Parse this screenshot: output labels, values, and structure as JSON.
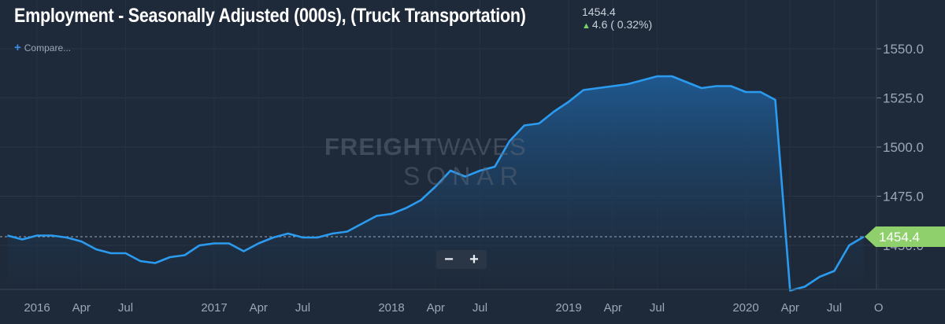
{
  "header": {
    "title": "Employment - Seasonally Adjusted (000s), (Truck Transportation)",
    "last_value": "1454.4",
    "change": "4.6 ( 0.32%)",
    "compare_label": "Compare..."
  },
  "watermark": {
    "brand_bold": "FREIGHT",
    "brand_thin": "WAVES",
    "product": "SONAR"
  },
  "zoom": {
    "minus": "−",
    "plus": "+"
  },
  "colors": {
    "background": "#1e2a3a",
    "line": "#2b9bf0",
    "area_top": "#1e5a92",
    "badge": "#8fd06c",
    "up_arrow": "#7bd36a",
    "grid": "#2b3747"
  },
  "chart_data": {
    "type": "area",
    "title": "Employment - Seasonally Adjusted (000s), (Truck Transportation)",
    "x": [
      "2015-11",
      "2015-12",
      "2016-01",
      "2016-02",
      "2016-03",
      "2016-04",
      "2016-05",
      "2016-06",
      "2016-07",
      "2016-08",
      "2016-09",
      "2016-10",
      "2016-11",
      "2016-12",
      "2017-01",
      "2017-02",
      "2017-03",
      "2017-04",
      "2017-05",
      "2017-06",
      "2017-07",
      "2017-08",
      "2017-09",
      "2017-10",
      "2017-11",
      "2017-12",
      "2018-01",
      "2018-02",
      "2018-03",
      "2018-04",
      "2018-05",
      "2018-06",
      "2018-07",
      "2018-08",
      "2018-09",
      "2018-10",
      "2018-11",
      "2018-12",
      "2019-01",
      "2019-02",
      "2019-03",
      "2019-04",
      "2019-05",
      "2019-06",
      "2019-07",
      "2019-08",
      "2019-09",
      "2019-10",
      "2019-11",
      "2019-12",
      "2020-01",
      "2020-02",
      "2020-03",
      "2020-04",
      "2020-05",
      "2020-06",
      "2020-07",
      "2020-08",
      "2020-09"
    ],
    "values": [
      1455,
      1453,
      1455,
      1455,
      1454,
      1452,
      1448,
      1446,
      1446,
      1442,
      1441,
      1444,
      1445,
      1450,
      1451,
      1451,
      1447,
      1451,
      1454,
      1456,
      1454,
      1454,
      1456,
      1457,
      1461,
      1465,
      1466,
      1469,
      1473,
      1480,
      1488,
      1485,
      1488,
      1490,
      1503,
      1511,
      1512,
      1518,
      1523,
      1529,
      1530,
      1531,
      1532,
      1534,
      1536,
      1536,
      1533,
      1530,
      1531,
      1531,
      1528,
      1528,
      1524,
      1427,
      1429,
      1434,
      1437,
      1450,
      1454.4
    ],
    "x_ticks": [
      {
        "date": "2016-01",
        "label": "2016"
      },
      {
        "date": "2016-04",
        "label": "Apr"
      },
      {
        "date": "2016-07",
        "label": "Jul"
      },
      {
        "date": "2017-01",
        "label": "2017"
      },
      {
        "date": "2017-04",
        "label": "Apr"
      },
      {
        "date": "2017-07",
        "label": "Jul"
      },
      {
        "date": "2018-01",
        "label": "2018"
      },
      {
        "date": "2018-04",
        "label": "Apr"
      },
      {
        "date": "2018-07",
        "label": "Jul"
      },
      {
        "date": "2019-01",
        "label": "2019"
      },
      {
        "date": "2019-04",
        "label": "Apr"
      },
      {
        "date": "2019-07",
        "label": "Jul"
      },
      {
        "date": "2020-01",
        "label": "2020"
      },
      {
        "date": "2020-04",
        "label": "Apr"
      },
      {
        "date": "2020-07",
        "label": "Jul"
      },
      {
        "date": "2020-10",
        "label": "O"
      }
    ],
    "y_ticks": [
      "1550.0",
      "1525.0",
      "1500.0",
      "1475.0",
      "1450.0"
    ],
    "ylim": [
      1420,
      1570
    ],
    "last_value_label": "1454.4",
    "grid": true,
    "reference_line": 1454.4
  }
}
